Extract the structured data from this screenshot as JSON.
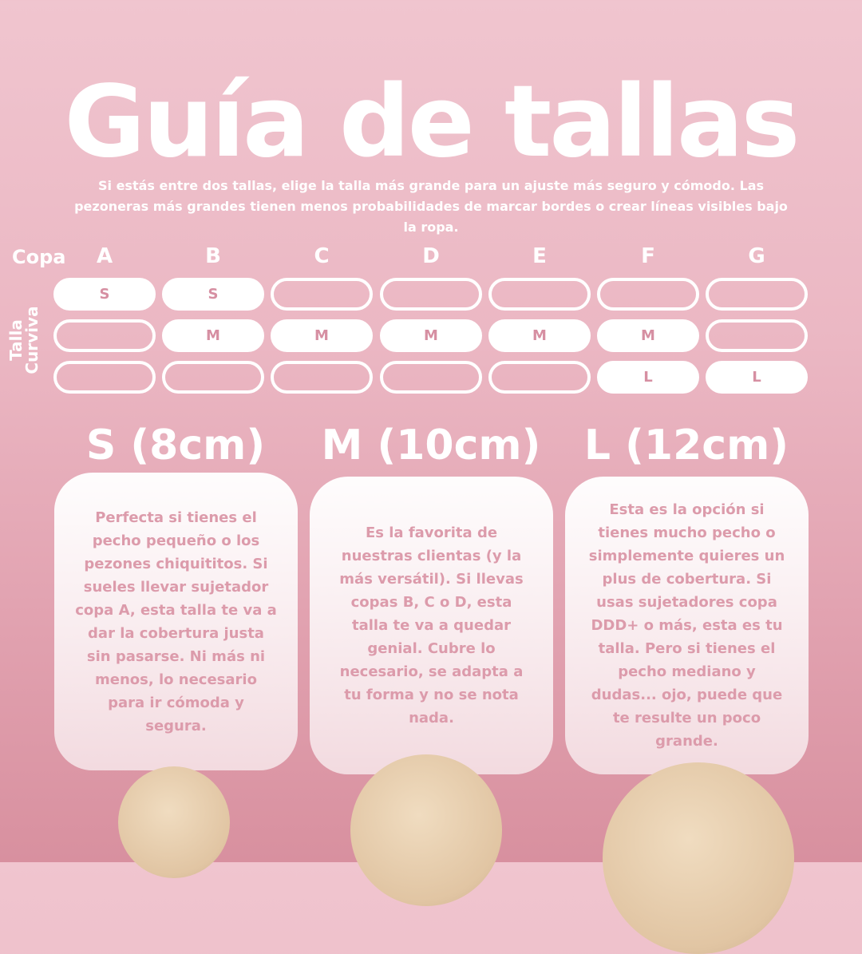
{
  "title": "Guía de tallas",
  "subtitle": "Si estás entre dos tallas, elige la talla más grande para un ajuste más seguro y cómodo. Las pezoneras más grandes tienen menos probabilidades de marcar bordes o crear líneas visibles bajo la ropa.",
  "table": {
    "row_label": "Copa",
    "axis_label": "Talla Curviva",
    "cups": [
      "A",
      "B",
      "C",
      "D",
      "E",
      "F",
      "G"
    ],
    "rows": [
      {
        "size": "S",
        "active": [
          true,
          true,
          false,
          false,
          false,
          false,
          false
        ]
      },
      {
        "size": "M",
        "active": [
          false,
          true,
          true,
          true,
          true,
          true,
          false
        ]
      },
      {
        "size": "L",
        "active": [
          false,
          false,
          false,
          false,
          false,
          true,
          true
        ]
      }
    ]
  },
  "sizes": [
    {
      "heading": "S (8cm)",
      "text": "Perfecta si tienes el pecho pequeño o los pezones chiquititos. Si sueles llevar sujetador copa A, esta talla te va a dar la cobertura justa sin pasarse. Ni más ni menos, lo necesario para ir cómoda y segura."
    },
    {
      "heading": "M (10cm)",
      "text": "Es la favorita de nuestras clientas (y la más versátil). Si llevas copas B, C o D, esta talla te va a quedar genial. Cubre lo necesario, se adapta a tu forma y no se nota nada."
    },
    {
      "heading": "L (12cm)",
      "text": "Esta es la opción si tienes mucho pecho o simplemente quieres un plus de cobertura. Si usas sujetadores copa DDD+ o más, esta es tu talla. Pero si tienes el pecho mediano y dudas... ojo, puede que te resulte un poco grande."
    }
  ],
  "colors": {
    "accent_text": "#d68fa2",
    "background_top": "#f0c5cf",
    "background_bottom": "#d8909f",
    "product": "#e1c5a3"
  }
}
